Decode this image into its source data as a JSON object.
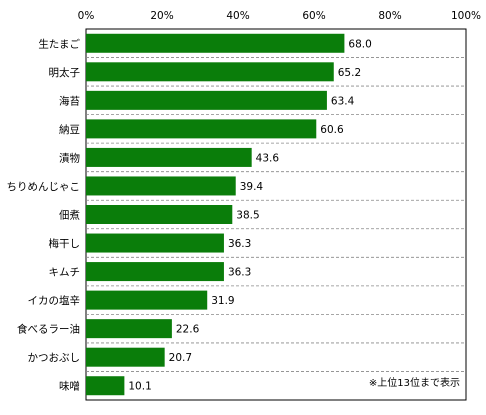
{
  "chart_data": {
    "type": "bar",
    "orientation": "horizontal",
    "categories": [
      "生たまご",
      "明太子",
      "海苔",
      "納豆",
      "漬物",
      "ちりめんじゃこ",
      "佃煮",
      "梅干し",
      "キムチ",
      "イカの塩辛",
      "食べるラー油",
      "かつおぶし",
      "味噌"
    ],
    "values": [
      68.0,
      65.2,
      63.4,
      60.6,
      43.6,
      39.4,
      38.5,
      36.3,
      36.3,
      31.9,
      22.6,
      20.7,
      10.1
    ],
    "value_labels": [
      "68.0",
      "65.2",
      "63.4",
      "60.6",
      "43.6",
      "39.4",
      "38.5",
      "36.3",
      "36.3",
      "31.9",
      "22.6",
      "20.7",
      "10.1"
    ],
    "xlim": [
      0,
      100
    ],
    "x_ticks": [
      "0%",
      "20%",
      "40%",
      "60%",
      "80%",
      "100%"
    ],
    "x_tick_values": [
      0,
      20,
      40,
      60,
      80,
      100
    ],
    "bar_color": "#0a7d0a",
    "grid": "horizontal dashed",
    "note": "※上位13位まで表示"
  }
}
